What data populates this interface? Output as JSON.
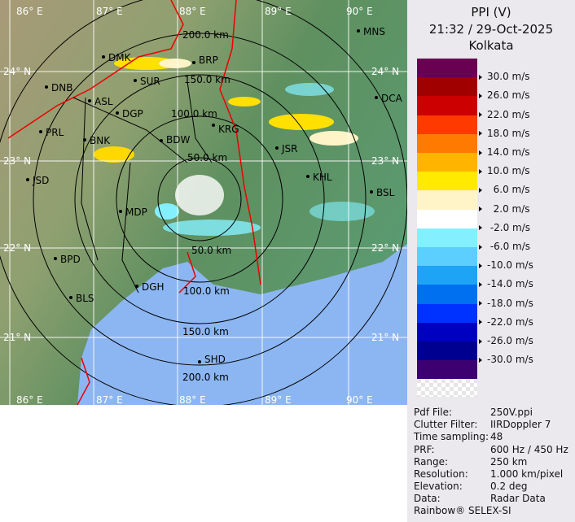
{
  "header": {
    "product": "PPI (V)",
    "datetime": "21:32 / 29-Oct-2025",
    "site": "Kolkata"
  },
  "legend": {
    "colors": [
      "#6a0052",
      "#a00000",
      "#cc0000",
      "#ff3a00",
      "#ff7a00",
      "#ffb400",
      "#ffea00",
      "#fff4c8",
      "#ffffff",
      "#84f0ff",
      "#5ccfff",
      "#1ea4f4",
      "#0070f0",
      "#0032ff",
      "#0000c0",
      "#000090",
      "#3c0070"
    ],
    "labels": [
      "30.0 m/s",
      "26.0 m/s",
      "22.0 m/s",
      "18.0 m/s",
      "14.0 m/s",
      "10.0 m/s",
      "  6.0 m/s",
      "  2.0 m/s",
      " -2.0 m/s",
      " -6.0 m/s",
      "-10.0 m/s",
      "-14.0 m/s",
      "-18.0 m/s",
      "-22.0 m/s",
      "-26.0 m/s",
      "-30.0 m/s"
    ]
  },
  "info": [
    {
      "key": "Pdf File:",
      "value": "250V.ppi"
    },
    {
      "key": "Clutter Filter:",
      "value": "IIRDoppler 7"
    },
    {
      "key": "Time sampling:",
      "value": "48"
    },
    {
      "key": "PRF:",
      "value": "600 Hz / 450 Hz"
    },
    {
      "key": "Range:",
      "value": "250 km"
    },
    {
      "key": "Resolution:",
      "value": "1.000 km/pixel"
    },
    {
      "key": "Elevation:",
      "value": "0.2 deg"
    },
    {
      "key": "Data:",
      "value": "Radar Data"
    }
  ],
  "footer": "Rainbow® SELEX-SI",
  "map": {
    "lon_labels": [
      "86° E",
      "87° E",
      "88° E",
      "89° E",
      "90° E"
    ],
    "lat_labels": [
      "24° N",
      "23° N",
      "22° N",
      "21° N"
    ],
    "ring_labels": [
      "200.0 km",
      "150.0 km",
      "100.0 km",
      "50.0 km"
    ],
    "cities": [
      "MNS",
      "DMK",
      "BRP",
      "SUR",
      "DNB",
      "ASL",
      "DCA",
      "DGP",
      "KRG",
      "PRL",
      "BNK",
      "BDW",
      "JSR",
      "KHL",
      "JSD",
      "BSL",
      "MDP",
      "BPD",
      "DGH",
      "BLS",
      "SHD"
    ]
  }
}
